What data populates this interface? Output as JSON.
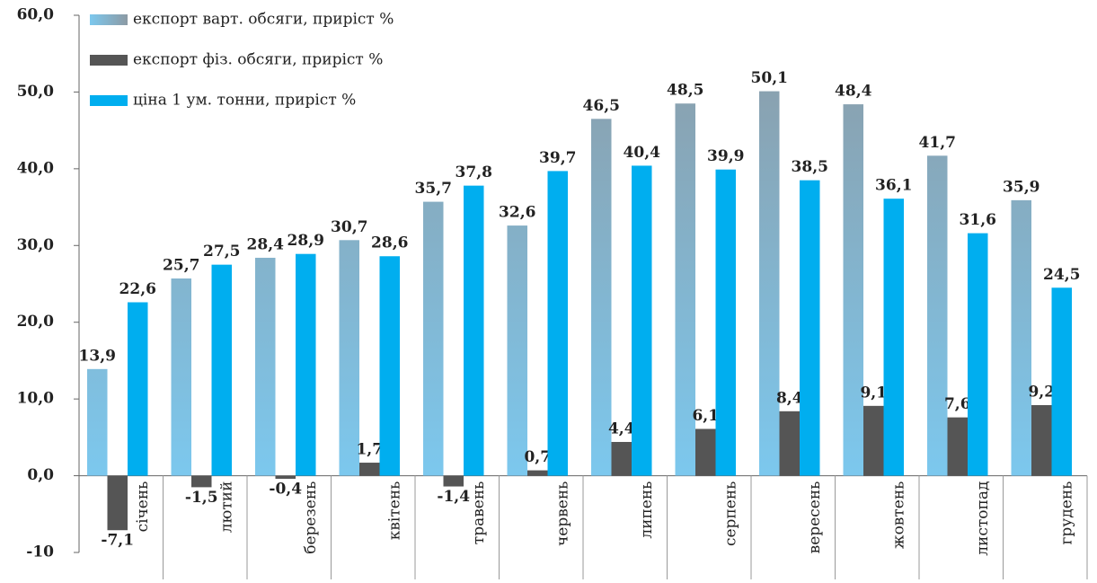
{
  "chart_data": {
    "type": "bar",
    "categories": [
      "січень",
      "лютий",
      "березень",
      "квітень",
      "травень",
      "червень",
      "липень",
      "серпень",
      "вересень",
      "жовтень",
      "листопад",
      "грудень"
    ],
    "series": [
      {
        "name": "експорт варт. обсяги, приріст %",
        "color": "#8c9aa4",
        "values": [
          13.9,
          25.7,
          28.4,
          30.7,
          35.7,
          32.6,
          46.5,
          48.5,
          50.1,
          48.4,
          41.7,
          35.9
        ],
        "value_labels": [
          "13,9",
          "25,7",
          "28,4",
          "30,7",
          "35,7",
          "32,6",
          "46,5",
          "48,5",
          "50,1",
          "48,4",
          "41,7",
          "35,9"
        ]
      },
      {
        "name": "експорт фіз. обсяги, приріст %",
        "color": "#555555",
        "values": [
          -7.1,
          -1.5,
          -0.4,
          1.7,
          -1.4,
          0.7,
          4.4,
          6.1,
          8.4,
          9.1,
          7.6,
          9.2
        ],
        "value_labels": [
          "-7,1",
          "-1,5",
          "-0,4",
          "1,7",
          "-1,4",
          "0,7",
          "4,4",
          "6,1",
          "8,4",
          "9,1",
          "7,6",
          "9,2"
        ]
      },
      {
        "name": "ціна 1 ум. тонни, приріст %",
        "color": "#00aeef",
        "values": [
          22.6,
          27.5,
          28.9,
          28.6,
          37.8,
          39.7,
          40.4,
          39.9,
          38.5,
          36.1,
          31.6,
          24.5
        ],
        "value_labels": [
          "22,6",
          "27,5",
          "28,9",
          "28,6",
          "37,8",
          "39,7",
          "40,4",
          "39,9",
          "38,5",
          "36,1",
          "31,6",
          "24,5"
        ]
      }
    ],
    "ylim": [
      -10,
      60
    ],
    "yticks": [
      -10,
      {
        "value": 0,
        "label": "0,0"
      },
      {
        "value": 10,
        "label": "10,0"
      },
      {
        "value": 20,
        "label": "20,0"
      },
      {
        "value": 30,
        "label": "30,0"
      },
      {
        "value": 40,
        "label": "40,0"
      },
      {
        "value": 50,
        "label": "50,0"
      },
      {
        "value": 60,
        "label": "60,0"
      }
    ],
    "legend": "top-left"
  }
}
